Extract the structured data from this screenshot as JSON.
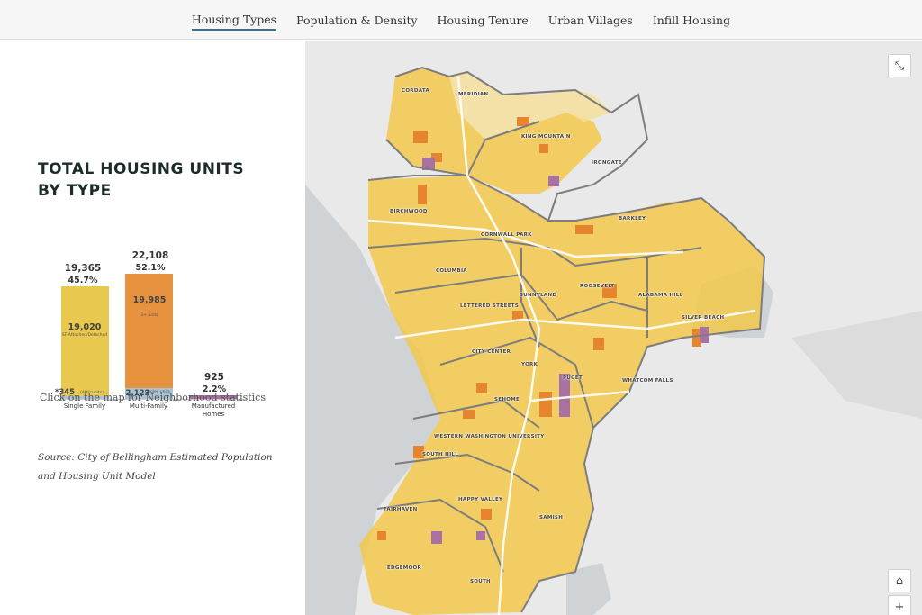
{
  "nav": {
    "tabs": [
      {
        "label": "Housing Types",
        "active": true
      },
      {
        "label": "Population & Density",
        "active": false
      },
      {
        "label": "Housing Tenure",
        "active": false
      },
      {
        "label": "Urban Villages",
        "active": false
      },
      {
        "label": "Infill Housing",
        "active": false
      }
    ]
  },
  "panel": {
    "heading": "TOTAL HOUSING UNITS BY TYPE",
    "hint": "Click on the map for Neighborhood statistics",
    "source": "Source: City of Bellingham Estimated Population and Housing Unit Model"
  },
  "chart": {
    "colors": {
      "single_family": "#e8c84f",
      "multi_family": "#e7923f",
      "duplex": "#a9c3d6",
      "adu": "#a9c3d6",
      "manufactured": "#a870a3"
    },
    "bars": [
      {
        "category": "Single Family",
        "total": "19,365",
        "pct": "45.7%",
        "main_value": "19,020",
        "main_sub": "SF Attached/Detached",
        "small_value": "*345",
        "small_sub": "(ADU units)"
      },
      {
        "category": "Multi-Family",
        "total": "22,108",
        "pct": "52.1%",
        "main_value": "19,985",
        "main_sub": "3+ units",
        "small_value": "2,123",
        "small_sub": "duplex units"
      },
      {
        "category": "Manufactured Homes",
        "total": "925",
        "pct": "2.2%"
      }
    ]
  },
  "map": {
    "expand_icon": "⤡",
    "home_icon": "⌂",
    "zoom_in": "+",
    "neighborhoods": [
      "CORDATA",
      "MERIDIAN",
      "KING MOUNTAIN",
      "IRONGATE",
      "BIRCHWOOD",
      "BARKLEY",
      "CORNWALL PARK",
      "COLUMBIA",
      "SUNNYLAND",
      "ROOSEVELT",
      "ALABAMA HILL",
      "SILVER BEACH",
      "LETTERED STREETS",
      "CITY CENTER",
      "YORK",
      "SEHOME",
      "WHATCOM FALLS",
      "WESTERN WASHINGTON UNIVERSITY",
      "SOUTH HILL",
      "HAPPY VALLEY",
      "FAIRHAVEN",
      "SAMISH",
      "EDGEMOOR",
      "SOUTH",
      "PUGET"
    ]
  }
}
